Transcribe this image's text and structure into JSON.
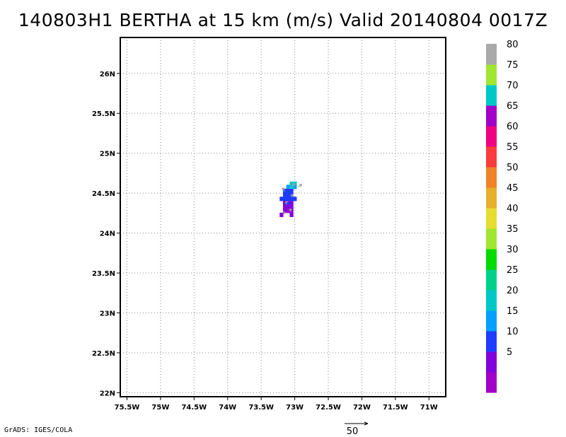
{
  "title": "140803H1 BERTHA at 15 km (m/s) Valid 20140804 0017Z",
  "credit": "GrADS: IGES/COLA",
  "map": {
    "lon_range": [
      -75.6,
      -70.75
    ],
    "lat_range": [
      21.95,
      26.45
    ],
    "lon_ticks": [
      {
        "value": -75.5,
        "label": "75.5W"
      },
      {
        "value": -75.0,
        "label": "75W"
      },
      {
        "value": -74.5,
        "label": "74.5W"
      },
      {
        "value": -74.0,
        "label": "74W"
      },
      {
        "value": -73.5,
        "label": "73.5W"
      },
      {
        "value": -73.0,
        "label": "73W"
      },
      {
        "value": -72.5,
        "label": "72.5W"
      },
      {
        "value": -72.0,
        "label": "72W"
      },
      {
        "value": -71.5,
        "label": "71.5W"
      },
      {
        "value": -71.0,
        "label": "71W"
      }
    ],
    "lat_ticks": [
      {
        "value": 22.0,
        "label": "22N"
      },
      {
        "value": 22.5,
        "label": "22.5N"
      },
      {
        "value": 23.0,
        "label": "23N"
      },
      {
        "value": 23.5,
        "label": "23.5N"
      },
      {
        "value": 24.0,
        "label": "24N"
      },
      {
        "value": 24.5,
        "label": "24.5N"
      },
      {
        "value": 25.0,
        "label": "25N"
      },
      {
        "value": 25.5,
        "label": "25.5N"
      },
      {
        "value": 26.0,
        "label": "26N"
      }
    ],
    "grid": "dotted"
  },
  "colorbar": {
    "levels": [
      {
        "color": "#a000c8",
        "label": ""
      },
      {
        "color": "#8200dc",
        "label": "5"
      },
      {
        "color": "#1e3cff",
        "label": "10"
      },
      {
        "color": "#00a0ff",
        "label": "15"
      },
      {
        "color": "#00c8c8",
        "label": "20"
      },
      {
        "color": "#00d28c",
        "label": "25"
      },
      {
        "color": "#00dc00",
        "label": "30"
      },
      {
        "color": "#a0e632",
        "label": "35"
      },
      {
        "color": "#e6dc32",
        "label": "40"
      },
      {
        "color": "#e6af2d",
        "label": "45"
      },
      {
        "color": "#f08228",
        "label": "50"
      },
      {
        "color": "#fa3c3c",
        "label": "55"
      },
      {
        "color": "#f00082",
        "label": "60"
      },
      {
        "color": "#a000c8",
        "label": "65"
      },
      {
        "color": "#00c8c8",
        "label": "70"
      },
      {
        "color": "#a0e632",
        "label": "75"
      },
      {
        "color": "#aaaaaa",
        "label": "80"
      }
    ]
  },
  "wind_cells": [
    {
      "lon": -73.05,
      "lat": 24.62,
      "level": 4
    },
    {
      "lon": -73.0,
      "lat": 24.62,
      "level": 4
    },
    {
      "lon": -73.1,
      "lat": 24.58,
      "level": 3
    },
    {
      "lon": -73.05,
      "lat": 24.58,
      "level": 4
    },
    {
      "lon": -73.0,
      "lat": 24.58,
      "level": 3
    },
    {
      "lon": -73.15,
      "lat": 24.53,
      "level": 2
    },
    {
      "lon": -73.1,
      "lat": 24.53,
      "level": 2
    },
    {
      "lon": -73.05,
      "lat": 24.53,
      "level": 2
    },
    {
      "lon": -73.15,
      "lat": 24.48,
      "level": 2
    },
    {
      "lon": -73.1,
      "lat": 24.48,
      "level": 2
    },
    {
      "lon": -73.05,
      "lat": 24.48,
      "level": 2
    },
    {
      "lon": -73.2,
      "lat": 24.43,
      "level": 2
    },
    {
      "lon": -73.15,
      "lat": 24.43,
      "level": 2
    },
    {
      "lon": -73.1,
      "lat": 24.43,
      "level": 2
    },
    {
      "lon": -73.05,
      "lat": 24.43,
      "level": 2
    },
    {
      "lon": -73.0,
      "lat": 24.43,
      "level": 2
    },
    {
      "lon": -73.15,
      "lat": 24.38,
      "level": 1
    },
    {
      "lon": -73.1,
      "lat": 24.38,
      "level": 2
    },
    {
      "lon": -73.05,
      "lat": 24.38,
      "level": 1
    },
    {
      "lon": -73.15,
      "lat": 24.33,
      "level": 1
    },
    {
      "lon": -73.1,
      "lat": 24.33,
      "level": 1
    },
    {
      "lon": -73.05,
      "lat": 24.33,
      "level": 1
    },
    {
      "lon": -73.15,
      "lat": 24.28,
      "level": 1
    },
    {
      "lon": -73.1,
      "lat": 24.28,
      "level": 0
    },
    {
      "lon": -73.05,
      "lat": 24.28,
      "level": 1
    },
    {
      "lon": -73.2,
      "lat": 24.23,
      "level": 1
    },
    {
      "lon": -73.05,
      "lat": 24.23,
      "level": 1
    }
  ],
  "wind_vectors": [
    {
      "lon": -73.15,
      "lat": 24.52,
      "u": -3,
      "v": 5
    },
    {
      "lon": -73.02,
      "lat": 24.57,
      "u": 1,
      "v": 6
    },
    {
      "lon": -72.95,
      "lat": 24.58,
      "u": 5,
      "v": 3
    },
    {
      "lon": -73.05,
      "lat": 24.45,
      "u": 2,
      "v": 4
    },
    {
      "lon": -73.12,
      "lat": 24.38,
      "u": -2,
      "v": 1
    },
    {
      "lon": -73.08,
      "lat": 24.28,
      "u": 3,
      "v": 2
    },
    {
      "lon": -73.15,
      "lat": 24.26,
      "u": -1,
      "v": -2
    }
  ],
  "reference_vector": {
    "label": "50"
  }
}
